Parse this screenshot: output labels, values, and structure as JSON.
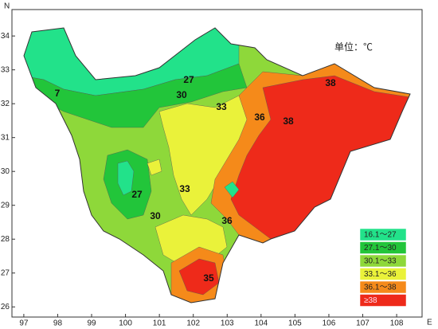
{
  "chart_data": {
    "type": "map",
    "unit_label": "单位：℃",
    "x_axis_label": "E",
    "y_axis_label": "N",
    "xlim": [
      96.65,
      108.75
    ],
    "ylim": [
      25.7,
      34.78
    ],
    "xticks": [
      97,
      98,
      99,
      100,
      101,
      102,
      103,
      104,
      105,
      106,
      107,
      108
    ],
    "yticks": [
      26,
      27,
      28,
      29,
      30,
      31,
      32,
      33,
      34
    ],
    "legend": [
      {
        "label": "16.1～27",
        "color": "#22e28a"
      },
      {
        "label": "27.1～30",
        "color": "#22c53a"
      },
      {
        "label": "30.1～33",
        "color": "#8ed83a"
      },
      {
        "label": "33.1～36",
        "color": "#eaf23a"
      },
      {
        "label": "36.1～38",
        "color": "#f58a1a"
      },
      {
        "label": "≥38",
        "color": "#ee2a1a"
      }
    ],
    "contour_labels": [
      27,
      30,
      33,
      36,
      38,
      38,
      7,
      27,
      30,
      33,
      36,
      35
    ]
  }
}
